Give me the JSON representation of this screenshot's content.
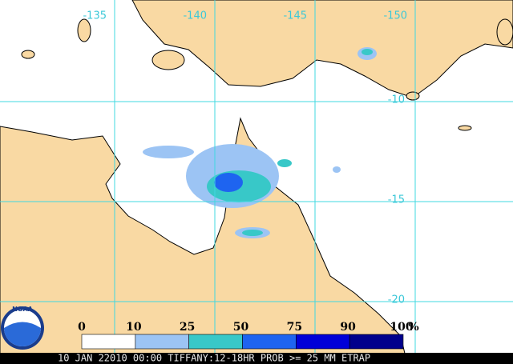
{
  "map": {
    "longitudes": [
      -135,
      -140,
      -145,
      -150
    ],
    "latitudes": [
      -10,
      -15,
      -20
    ],
    "legend": {
      "ticks": [
        0,
        10,
        25,
        50,
        75,
        90,
        100
      ],
      "unit": "%",
      "colors": [
        "#ffffff",
        "#9cc4f4",
        "#38c8c8",
        "#1e64f0",
        "#0000d8",
        "#00008c"
      ]
    },
    "logo": "NOAA",
    "caption": "10 JAN 22010 00:00 TIFFANY:12-18HR PROB >= 25 MM ETRAP"
  }
}
